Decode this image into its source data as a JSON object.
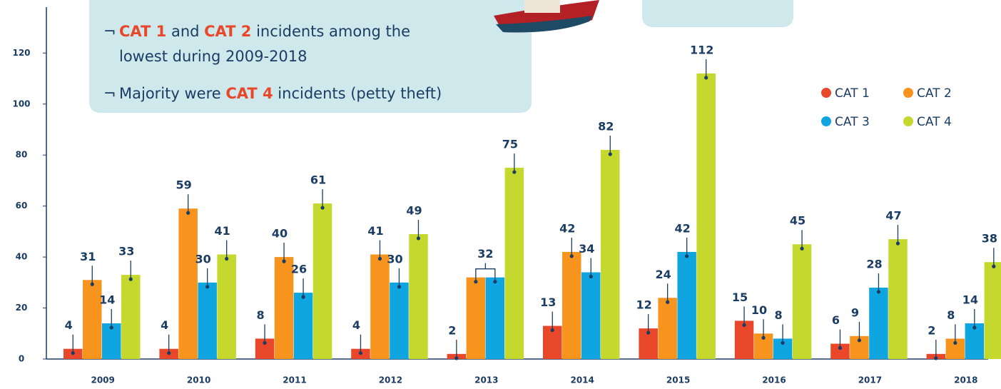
{
  "chart_data": {
    "type": "bar",
    "categories": [
      "2009",
      "2010",
      "2011",
      "2012",
      "2013",
      "2014",
      "2015",
      "2016",
      "2017",
      "2018"
    ],
    "series": [
      {
        "name": "CAT 1",
        "color": "#e8472a",
        "values": [
          4,
          4,
          8,
          4,
          2,
          13,
          12,
          15,
          6,
          2
        ]
      },
      {
        "name": "CAT 2",
        "color": "#f7941d",
        "values": [
          31,
          59,
          40,
          41,
          32,
          42,
          24,
          10,
          9,
          8
        ]
      },
      {
        "name": "CAT 3",
        "color": "#0ea5e0",
        "values": [
          14,
          30,
          26,
          30,
          32,
          34,
          42,
          8,
          28,
          14
        ]
      },
      {
        "name": "CAT 4",
        "color": "#c5d82e",
        "values": [
          33,
          41,
          61,
          49,
          75,
          82,
          112,
          45,
          47,
          38
        ]
      }
    ],
    "ylim": [
      0,
      138
    ],
    "yticks": [
      0,
      20,
      40,
      60,
      80,
      100,
      120
    ],
    "notes": [
      [
        {
          "text": "CAT 1",
          "emphasis": true
        },
        {
          "text": " and ",
          "emphasis": false
        },
        {
          "text": "CAT 2",
          "emphasis": true
        },
        {
          "text": " incidents among the",
          "emphasis": false
        }
      ],
      [
        {
          "text": "lowest during 2009-2018",
          "emphasis": false
        }
      ],
      [
        {
          "text": "Majority were ",
          "emphasis": false
        },
        {
          "text": "CAT 4",
          "emphasis": true
        },
        {
          "text": " incidents (petty theft)",
          "emphasis": false
        }
      ]
    ]
  }
}
